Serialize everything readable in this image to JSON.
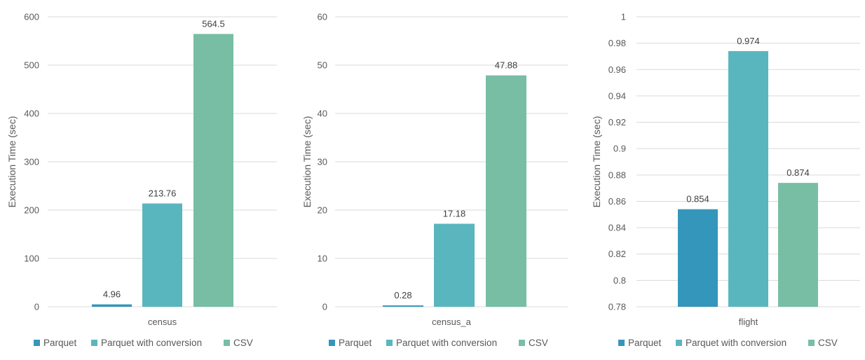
{
  "colors": {
    "Parquet": "#3596BB",
    "Parquet with conversion": "#5AB6BE",
    "CSV": "#77BEA5"
  },
  "chart_data": [
    {
      "type": "bar",
      "categories": [
        "census"
      ],
      "series": [
        {
          "name": "Parquet",
          "values": [
            4.96
          ]
        },
        {
          "name": "Parquet with conversion",
          "values": [
            213.76
          ]
        },
        {
          "name": "CSV",
          "values": [
            564.5
          ]
        }
      ],
      "data_labels": [
        "4.96",
        "213.76",
        "564.5"
      ],
      "ylabel": "Execution Time (sec)",
      "ylim": [
        0,
        600
      ],
      "yticks": [
        "0",
        "100",
        "200",
        "300",
        "400",
        "500",
        "600"
      ],
      "grid": true,
      "legend": "bottom"
    },
    {
      "type": "bar",
      "categories": [
        "census_a"
      ],
      "series": [
        {
          "name": "Parquet",
          "values": [
            0.28
          ]
        },
        {
          "name": "Parquet with conversion",
          "values": [
            17.18
          ]
        },
        {
          "name": "CSV",
          "values": [
            47.88
          ]
        }
      ],
      "data_labels": [
        "0.28",
        "17.18",
        "47.88"
      ],
      "ylabel": "Execution Time (sec)",
      "ylim": [
        0,
        60
      ],
      "yticks": [
        "0",
        "10",
        "20",
        "30",
        "40",
        "50",
        "60"
      ],
      "grid": true,
      "legend": "bottom"
    },
    {
      "type": "bar",
      "categories": [
        "flight"
      ],
      "series": [
        {
          "name": "Parquet",
          "values": [
            0.854
          ]
        },
        {
          "name": "Parquet with conversion",
          "values": [
            0.974
          ]
        },
        {
          "name": "CSV",
          "values": [
            0.874
          ]
        }
      ],
      "data_labels": [
        "0.854",
        "0.974",
        "0.874"
      ],
      "ylabel": "Execution Time (sec)",
      "ylim": [
        0.78,
        1
      ],
      "yticks": [
        "0.78",
        "0.8",
        "0.82",
        "0.84",
        "0.86",
        "0.88",
        "0.9",
        "0.92",
        "0.94",
        "0.96",
        "0.98",
        "1"
      ],
      "grid": true,
      "legend": "bottom"
    }
  ]
}
